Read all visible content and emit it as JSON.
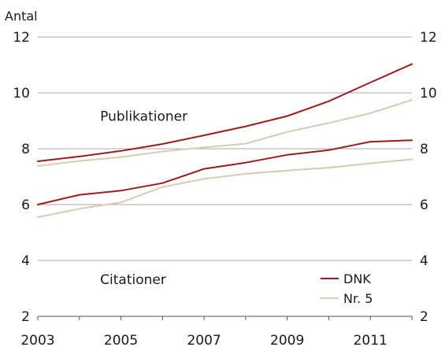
{
  "chart_data": {
    "type": "line",
    "title": "",
    "ylabel": "Antal",
    "xlabel": "",
    "ylim": [
      2,
      12
    ],
    "yticks": [
      2,
      4,
      6,
      8,
      10,
      12
    ],
    "xlim": [
      2003,
      2012
    ],
    "xticks": [
      2003,
      2005,
      2007,
      2009,
      2011
    ],
    "grid": true,
    "legend_position": "bottom-right",
    "x": [
      2003,
      2004,
      2005,
      2006,
      2007,
      2008,
      2009,
      2010,
      2011,
      2012
    ],
    "series": [
      {
        "name": "DNK",
        "group": "Publikationer",
        "color": "#9b1b1f",
        "values": [
          7.55,
          7.72,
          7.92,
          8.17,
          8.48,
          8.8,
          9.17,
          9.7,
          10.37,
          11.03
        ]
      },
      {
        "name": "Nr. 5",
        "group": "Publikationer",
        "color": "#d6cbb4",
        "values": [
          7.38,
          7.56,
          7.7,
          7.9,
          8.05,
          8.18,
          8.6,
          8.92,
          9.27,
          9.75
        ]
      },
      {
        "name": "DNK",
        "group": "Citationer",
        "color": "#9b1b1f",
        "values": [
          6.0,
          6.35,
          6.5,
          6.77,
          7.28,
          7.5,
          7.78,
          7.95,
          8.25,
          8.3
        ]
      },
      {
        "name": "Nr. 5",
        "group": "Citationer",
        "color": "#d6cbb4",
        "values": [
          5.55,
          5.85,
          6.08,
          6.63,
          6.92,
          7.1,
          7.22,
          7.32,
          7.48,
          7.62
        ]
      }
    ],
    "annotations": [
      {
        "text": "Publikationer",
        "x": 2004.5,
        "y": 9.0
      },
      {
        "text": "Citationer",
        "x": 2004.5,
        "y": 3.15
      }
    ],
    "legend": [
      {
        "label": "DNK",
        "color": "#9b1b1f"
      },
      {
        "label": "Nr. 5",
        "color": "#d6cbb4"
      }
    ]
  }
}
